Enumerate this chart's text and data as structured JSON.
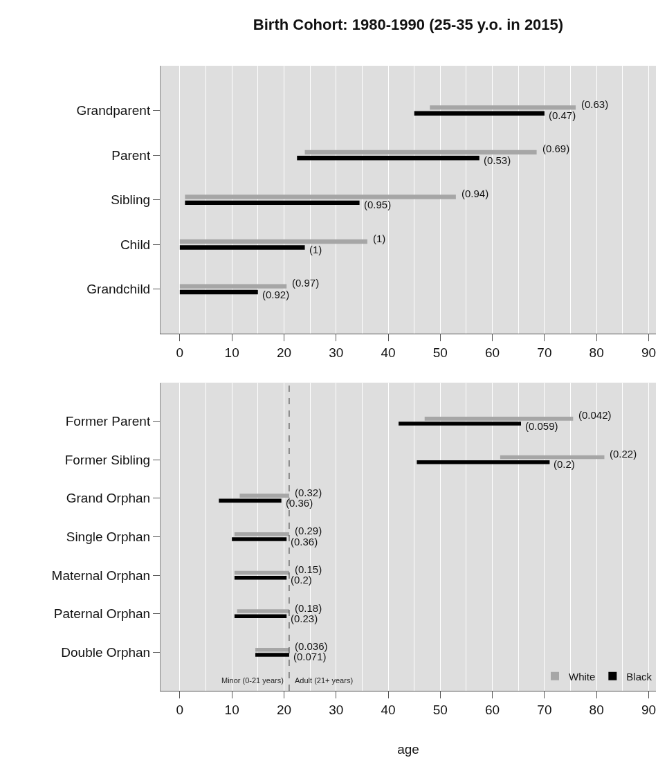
{
  "chart_data": [
    {
      "type": "bar",
      "orientation": "horizontal",
      "title": "Birth Cohort: 1980-1990 (25-35 y.o. in 2015)",
      "categories": [
        "Grandparent",
        "Parent",
        "Sibling",
        "Child",
        "Grandchild"
      ],
      "series": [
        {
          "color": "#a6a6a6",
          "base": [
            48,
            24,
            1,
            0,
            0
          ],
          "values": [
            28,
            44.5,
            52,
            36,
            20.5
          ]
        },
        {
          "color": "#000000",
          "base": [
            45,
            22.5,
            1,
            0,
            0
          ],
          "values": [
            25,
            35,
            33.5,
            24,
            15
          ]
        }
      ],
      "annotations": [
        {
          "text": "(0.63)",
          "x": 76,
          "y": "Grandparent"
        },
        {
          "text": "(0.47)",
          "x": 70,
          "y": "Grandparent"
        },
        {
          "text": "(0.69)",
          "x": 68.5,
          "y": "Parent"
        },
        {
          "text": "(0.53)",
          "x": 57.5,
          "y": "Parent"
        },
        {
          "text": "(0.94)",
          "x": 53,
          "y": "Sibling"
        },
        {
          "text": "(0.95)",
          "x": 34.5,
          "y": "Sibling"
        },
        {
          "text": "(1)",
          "x": 36,
          "y": "Child"
        },
        {
          "text": "(1)",
          "x": 24,
          "y": "Child"
        },
        {
          "text": "(0.97)",
          "x": 20.5,
          "y": "Grandchild"
        },
        {
          "text": "(0.92)",
          "x": 15,
          "y": "Grandchild"
        }
      ],
      "xlim": [
        -3.7,
        91.4
      ],
      "xticks": [
        0,
        10,
        20,
        30,
        40,
        50,
        60,
        70,
        80,
        90
      ],
      "grid": "x"
    },
    {
      "type": "bar",
      "orientation": "horizontal",
      "xlabel": "age",
      "categories": [
        "Former Parent",
        "Former Sibling",
        "Grand Orphan",
        "Single Orphan",
        "Maternal Orphan",
        "Paternal Orphan",
        "Double Orphan"
      ],
      "series": [
        {
          "name": "White",
          "color": "#a6a6a6",
          "base": [
            47,
            61.5,
            11.5,
            10.5,
            10.5,
            11,
            14.5
          ],
          "values": [
            28.5,
            20,
            9.5,
            10.5,
            10.5,
            10,
            6.5
          ]
        },
        {
          "name": "Black",
          "color": "#000000",
          "base": [
            42,
            45.5,
            7.5,
            10,
            10.5,
            10.5,
            14.5
          ],
          "values": [
            23.5,
            25.5,
            12,
            10.5,
            10,
            10,
            6.5
          ]
        }
      ],
      "ref_lines": [
        {
          "axis": "x",
          "value": 21,
          "color": "#333333",
          "line_style": "dashed"
        }
      ],
      "annotations": [
        "Minor (0-21 years)",
        "Adult (21+ years)",
        {
          "text": "(0.042)",
          "x": 75.5,
          "y": "Former Parent"
        },
        {
          "text": "(0.059)",
          "x": 65.5,
          "y": "Former Parent"
        },
        {
          "text": "(0.22)",
          "x": 81.5,
          "y": "Former Sibling"
        },
        {
          "text": "(0.2)",
          "x": 71,
          "y": "Former Sibling"
        },
        {
          "text": "(0.32)",
          "x": 21,
          "y": "Grand Orphan"
        },
        {
          "text": "(0.36)",
          "x": 19.5,
          "y": "Grand Orphan"
        },
        {
          "text": "(0.29)",
          "x": 21,
          "y": "Single Orphan"
        },
        {
          "text": "(0.36)",
          "x": 20.5,
          "y": "Single Orphan"
        },
        {
          "text": "(0.15)",
          "x": 21,
          "y": "Maternal Orphan"
        },
        {
          "text": "(0.2)",
          "x": 20.5,
          "y": "Maternal Orphan"
        },
        {
          "text": "(0.18)",
          "x": 21,
          "y": "Paternal Orphan"
        },
        {
          "text": "(0.23)",
          "x": 20.5,
          "y": "Paternal Orphan"
        },
        {
          "text": "(0.036)",
          "x": 21,
          "y": "Double Orphan"
        },
        {
          "text": "(0.071)",
          "x": 21,
          "y": "Double Orphan"
        }
      ],
      "xlim": [
        -3.7,
        91.4
      ],
      "xticks": [
        0,
        10,
        20,
        30,
        40,
        50,
        60,
        70,
        80,
        90
      ],
      "grid": "x",
      "legend": "bottom right"
    }
  ]
}
